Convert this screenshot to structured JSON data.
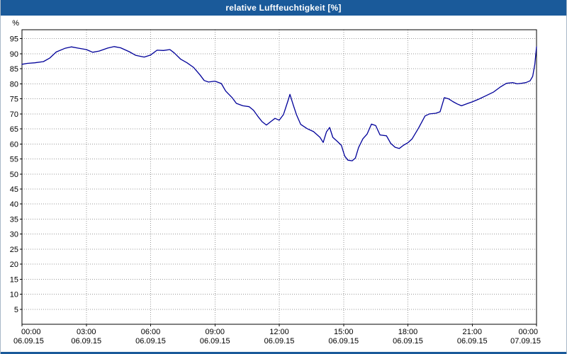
{
  "titlebar": {
    "title": "relative Luftfeuchtigkeit [%]"
  },
  "theme": {
    "titlebar_bg": "#1a5a9a",
    "titlebar_fg": "#ffffff",
    "plot_bg": "#ffffff",
    "axis_color": "#000000",
    "grid_color": "#999999",
    "tick_label_color": "#000000"
  },
  "chart_data": {
    "type": "line",
    "title": "relative Luftfeuchtigkeit [%]",
    "xlabel": "",
    "ylabel": "%",
    "ylim": [
      0,
      98
    ],
    "xlim": [
      0,
      24
    ],
    "grid": true,
    "legend_position": "none",
    "line_color": "#000099",
    "yticks": [
      5,
      10,
      15,
      20,
      25,
      30,
      35,
      40,
      45,
      50,
      55,
      60,
      65,
      70,
      75,
      80,
      85,
      90,
      95
    ],
    "xticks": [
      {
        "hour": 0,
        "time": "00:00",
        "date": "06.09.15"
      },
      {
        "hour": 3,
        "time": "03:00",
        "date": "06.09.15"
      },
      {
        "hour": 6,
        "time": "06:00",
        "date": "06.09.15"
      },
      {
        "hour": 9,
        "time": "09:00",
        "date": "06.09.15"
      },
      {
        "hour": 12,
        "time": "12:00",
        "date": "06.09.15"
      },
      {
        "hour": 15,
        "time": "15:00",
        "date": "06.09.15"
      },
      {
        "hour": 18,
        "time": "18:00",
        "date": "06.09.15"
      },
      {
        "hour": 21,
        "time": "21:00",
        "date": "06.09.15"
      },
      {
        "hour": 24,
        "time": "00:00",
        "date": "07.09.15"
      }
    ],
    "series_name": "relative Luftfeuchtigkeit",
    "unit": "%",
    "points": [
      [
        0.0,
        86.5
      ],
      [
        0.25,
        86.8
      ],
      [
        0.6,
        87.0
      ],
      [
        1.0,
        87.4
      ],
      [
        1.3,
        88.6
      ],
      [
        1.6,
        90.6
      ],
      [
        2.0,
        91.8
      ],
      [
        2.3,
        92.3
      ],
      [
        2.6,
        91.9
      ],
      [
        3.0,
        91.4
      ],
      [
        3.3,
        90.5
      ],
      [
        3.6,
        90.9
      ],
      [
        4.0,
        91.9
      ],
      [
        4.3,
        92.4
      ],
      [
        4.6,
        92.0
      ],
      [
        5.0,
        90.7
      ],
      [
        5.3,
        89.5
      ],
      [
        5.7,
        88.9
      ],
      [
        6.0,
        89.6
      ],
      [
        6.3,
        91.2
      ],
      [
        6.6,
        91.1
      ],
      [
        6.9,
        91.4
      ],
      [
        7.1,
        90.3
      ],
      [
        7.4,
        88.2
      ],
      [
        7.7,
        87.0
      ],
      [
        8.0,
        85.5
      ],
      [
        8.3,
        83.0
      ],
      [
        8.5,
        81.1
      ],
      [
        8.7,
        80.6
      ],
      [
        9.0,
        80.9
      ],
      [
        9.3,
        80.1
      ],
      [
        9.5,
        77.6
      ],
      [
        9.8,
        75.4
      ],
      [
        10.0,
        73.5
      ],
      [
        10.3,
        72.7
      ],
      [
        10.6,
        72.4
      ],
      [
        10.8,
        71.2
      ],
      [
        11.0,
        69.2
      ],
      [
        11.2,
        67.4
      ],
      [
        11.4,
        66.3
      ],
      [
        11.6,
        67.4
      ],
      [
        11.8,
        68.5
      ],
      [
        12.0,
        67.9
      ],
      [
        12.2,
        69.8
      ],
      [
        12.4,
        74.2
      ],
      [
        12.5,
        76.5
      ],
      [
        12.65,
        73.0
      ],
      [
        12.8,
        69.8
      ],
      [
        13.0,
        66.5
      ],
      [
        13.3,
        65.1
      ],
      [
        13.6,
        64.1
      ],
      [
        13.9,
        62.2
      ],
      [
        14.05,
        60.5
      ],
      [
        14.2,
        64.0
      ],
      [
        14.35,
        65.5
      ],
      [
        14.5,
        62.2
      ],
      [
        14.7,
        60.9
      ],
      [
        14.9,
        59.5
      ],
      [
        15.05,
        56.0
      ],
      [
        15.2,
        54.6
      ],
      [
        15.4,
        54.4
      ],
      [
        15.55,
        55.3
      ],
      [
        15.7,
        58.8
      ],
      [
        15.9,
        61.7
      ],
      [
        16.1,
        63.3
      ],
      [
        16.3,
        66.6
      ],
      [
        16.5,
        66.1
      ],
      [
        16.7,
        63.0
      ],
      [
        17.0,
        62.7
      ],
      [
        17.2,
        60.2
      ],
      [
        17.4,
        58.9
      ],
      [
        17.6,
        58.5
      ],
      [
        17.8,
        59.6
      ],
      [
        18.0,
        60.4
      ],
      [
        18.2,
        61.7
      ],
      [
        18.5,
        65.3
      ],
      [
        18.8,
        69.3
      ],
      [
        19.0,
        70.0
      ],
      [
        19.3,
        70.2
      ],
      [
        19.5,
        70.7
      ],
      [
        19.7,
        75.4
      ],
      [
        19.9,
        75.0
      ],
      [
        20.1,
        74.1
      ],
      [
        20.3,
        73.3
      ],
      [
        20.5,
        72.7
      ],
      [
        20.8,
        73.5
      ],
      [
        21.0,
        74.0
      ],
      [
        21.3,
        74.9
      ],
      [
        21.6,
        75.9
      ],
      [
        22.0,
        77.3
      ],
      [
        22.3,
        78.9
      ],
      [
        22.6,
        80.2
      ],
      [
        22.9,
        80.4
      ],
      [
        23.1,
        80.0
      ],
      [
        23.3,
        80.2
      ],
      [
        23.5,
        80.4
      ],
      [
        23.7,
        81.0
      ],
      [
        23.82,
        82.5
      ],
      [
        23.92,
        86.5
      ],
      [
        24.0,
        92.3
      ]
    ]
  }
}
